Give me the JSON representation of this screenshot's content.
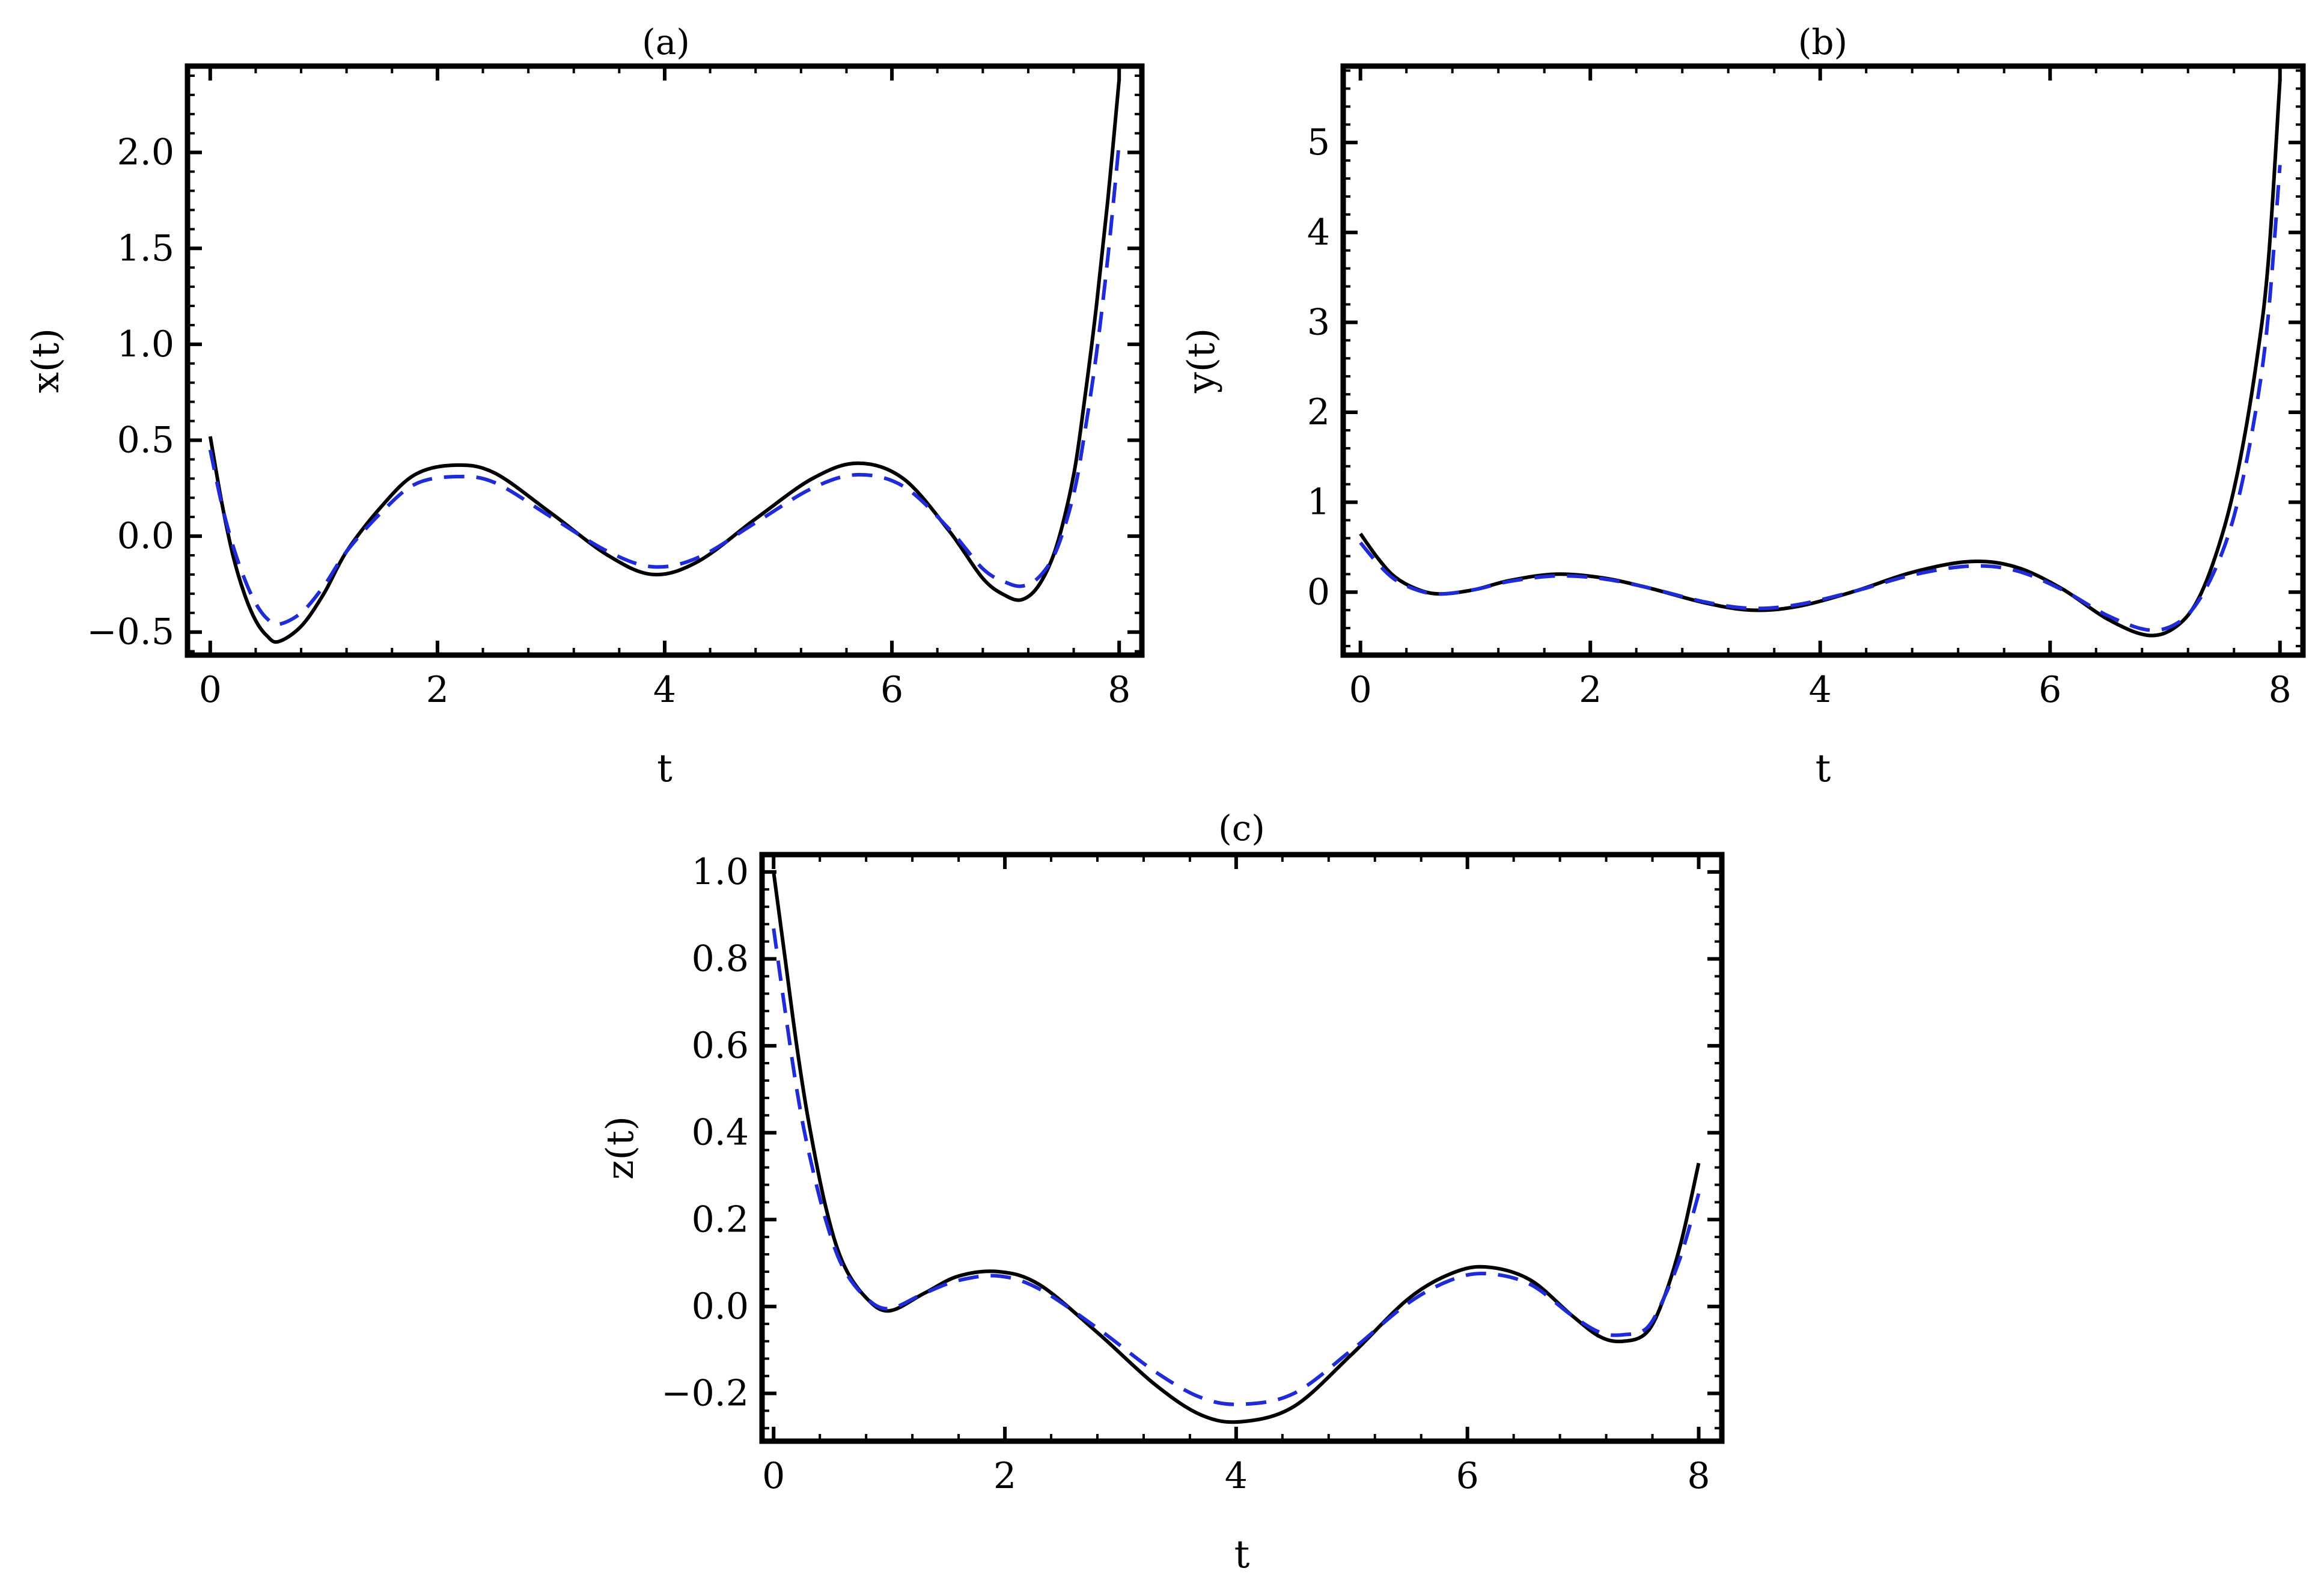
{
  "colors": {
    "solid": "#000000",
    "dashed": "#1f2bd6",
    "frame": "#000000"
  },
  "chart_data": [
    {
      "type": "line",
      "title": "(a)",
      "xlabel": "t",
      "ylabel": "x(t)",
      "xlim": [
        -0.2,
        8.2
      ],
      "ylim": [
        -0.62,
        2.45
      ],
      "xticks": [
        0,
        2,
        4,
        6,
        8
      ],
      "xtick_labels": [
        "0",
        "2",
        "4",
        "6",
        "8"
      ],
      "yticks": [
        -0.5,
        0.0,
        0.5,
        1.0,
        1.5,
        2.0
      ],
      "ytick_labels": [
        "−0.5",
        "0.0",
        "0.5",
        "1.0",
        "1.5",
        "2.0"
      ],
      "grid": false,
      "series": [
        {
          "style": "solid",
          "x": [
            0,
            0.1,
            0.2,
            0.3,
            0.4,
            0.5,
            0.6,
            0.8,
            1.0,
            1.2,
            1.5,
            1.8,
            2.15,
            2.5,
            3.0,
            3.5,
            3.9,
            4.3,
            4.8,
            5.3,
            5.7,
            6.1,
            6.5,
            6.8,
            7.0,
            7.15,
            7.3,
            7.45,
            7.6,
            7.7,
            7.8,
            7.9,
            8.0
          ],
          "y": [
            0.52,
            0.18,
            -0.1,
            -0.3,
            -0.44,
            -0.52,
            -0.55,
            -0.47,
            -0.3,
            -0.08,
            0.15,
            0.32,
            0.37,
            0.33,
            0.12,
            -0.1,
            -0.2,
            -0.13,
            0.09,
            0.3,
            0.38,
            0.3,
            0.03,
            -0.22,
            -0.31,
            -0.33,
            -0.25,
            -0.05,
            0.32,
            0.73,
            1.2,
            1.75,
            2.38
          ]
        },
        {
          "style": "dashed",
          "x": [
            0,
            0.1,
            0.2,
            0.3,
            0.4,
            0.5,
            0.6,
            0.8,
            1.0,
            1.2,
            1.5,
            1.8,
            2.15,
            2.5,
            3.0,
            3.5,
            3.9,
            4.3,
            4.8,
            5.3,
            5.7,
            6.1,
            6.5,
            6.8,
            7.0,
            7.15,
            7.3,
            7.45,
            7.6,
            7.7,
            7.8,
            7.9,
            8.0
          ],
          "y": [
            0.45,
            0.17,
            -0.05,
            -0.22,
            -0.35,
            -0.43,
            -0.46,
            -0.4,
            -0.26,
            -0.08,
            0.12,
            0.27,
            0.31,
            0.28,
            0.1,
            -0.08,
            -0.16,
            -0.11,
            0.07,
            0.25,
            0.32,
            0.26,
            0.04,
            -0.17,
            -0.24,
            -0.26,
            -0.21,
            -0.07,
            0.22,
            0.55,
            0.95,
            1.45,
            2.05
          ]
        }
      ]
    },
    {
      "type": "line",
      "title": "(b)",
      "xlabel": "t",
      "ylabel": "y(t)",
      "xlim": [
        -0.15,
        8.2
      ],
      "ylim": [
        -0.7,
        5.85
      ],
      "xticks": [
        0,
        2,
        4,
        6,
        8
      ],
      "xtick_labels": [
        "0",
        "2",
        "4",
        "6",
        "8"
      ],
      "yticks": [
        0,
        1,
        2,
        3,
        4,
        5
      ],
      "ytick_labels": [
        "0",
        "1",
        "2",
        "3",
        "4",
        "5"
      ],
      "grid": false,
      "series": [
        {
          "style": "solid",
          "x": [
            0,
            0.15,
            0.3,
            0.5,
            0.7,
            1.0,
            1.3,
            1.7,
            2.1,
            2.5,
            3.0,
            3.4,
            3.8,
            4.3,
            4.8,
            5.3,
            5.7,
            6.1,
            6.5,
            6.85,
            7.1,
            7.3,
            7.5,
            7.65,
            7.8,
            7.9,
            8.0
          ],
          "y": [
            0.65,
            0.38,
            0.17,
            0.03,
            -0.02,
            0.03,
            0.13,
            0.2,
            0.16,
            0.05,
            -0.12,
            -0.2,
            -0.16,
            0.01,
            0.22,
            0.34,
            0.28,
            0.04,
            -0.3,
            -0.48,
            -0.38,
            -0.05,
            0.65,
            1.45,
            2.6,
            3.7,
            5.7
          ]
        },
        {
          "style": "dashed",
          "x": [
            0,
            0.15,
            0.3,
            0.5,
            0.7,
            1.0,
            1.3,
            1.7,
            2.1,
            2.5,
            3.0,
            3.4,
            3.8,
            4.3,
            4.8,
            5.3,
            5.7,
            6.1,
            6.5,
            6.85,
            7.1,
            7.3,
            7.5,
            7.65,
            7.8,
            7.9,
            8.0
          ],
          "y": [
            0.55,
            0.32,
            0.14,
            0.02,
            -0.02,
            0.03,
            0.12,
            0.18,
            0.15,
            0.05,
            -0.11,
            -0.18,
            -0.14,
            0.01,
            0.19,
            0.29,
            0.24,
            0.03,
            -0.26,
            -0.42,
            -0.35,
            -0.08,
            0.45,
            1.1,
            2.1,
            3.1,
            4.75
          ]
        }
      ]
    },
    {
      "type": "line",
      "title": "(c)",
      "xlabel": "t",
      "ylabel": "z(t)",
      "xlim": [
        -0.1,
        8.2
      ],
      "ylim": [
        -0.31,
        1.04
      ],
      "xticks": [
        0,
        2,
        4,
        6,
        8
      ],
      "xtick_labels": [
        "0",
        "2",
        "4",
        "6",
        "8"
      ],
      "yticks": [
        -0.2,
        0.0,
        0.2,
        0.4,
        0.6,
        0.8,
        1.0
      ],
      "ytick_labels": [
        "−0.2",
        "0.0",
        "0.2",
        "0.4",
        "0.6",
        "0.8",
        "1.0"
      ],
      "grid": false,
      "series": [
        {
          "style": "solid",
          "x": [
            0,
            0.1,
            0.2,
            0.3,
            0.45,
            0.6,
            0.8,
            1.0,
            1.3,
            1.6,
            1.95,
            2.3,
            2.8,
            3.3,
            3.7,
            4.05,
            4.5,
            5.0,
            5.5,
            5.9,
            6.2,
            6.55,
            6.9,
            7.15,
            7.35,
            7.55,
            7.7,
            7.85,
            8.0
          ],
          "y": [
            1.0,
            0.8,
            0.6,
            0.43,
            0.23,
            0.1,
            0.02,
            -0.01,
            0.03,
            0.07,
            0.08,
            0.05,
            -0.06,
            -0.18,
            -0.25,
            -0.265,
            -0.23,
            -0.11,
            0.02,
            0.08,
            0.09,
            0.06,
            -0.02,
            -0.07,
            -0.08,
            -0.06,
            0.02,
            0.15,
            0.33
          ]
        },
        {
          "style": "dashed",
          "x": [
            0,
            0.1,
            0.2,
            0.3,
            0.45,
            0.6,
            0.8,
            1.0,
            1.3,
            1.6,
            1.95,
            2.3,
            2.8,
            3.3,
            3.7,
            4.05,
            4.5,
            5.0,
            5.5,
            5.9,
            6.2,
            6.55,
            6.9,
            7.15,
            7.35,
            7.55,
            7.7,
            7.85,
            8.0
          ],
          "y": [
            0.87,
            0.68,
            0.5,
            0.36,
            0.2,
            0.09,
            0.02,
            -0.005,
            0.03,
            0.06,
            0.07,
            0.04,
            -0.05,
            -0.15,
            -0.21,
            -0.225,
            -0.2,
            -0.1,
            0.01,
            0.065,
            0.075,
            0.05,
            -0.02,
            -0.06,
            -0.065,
            -0.05,
            0.02,
            0.12,
            0.26
          ]
        }
      ]
    }
  ]
}
